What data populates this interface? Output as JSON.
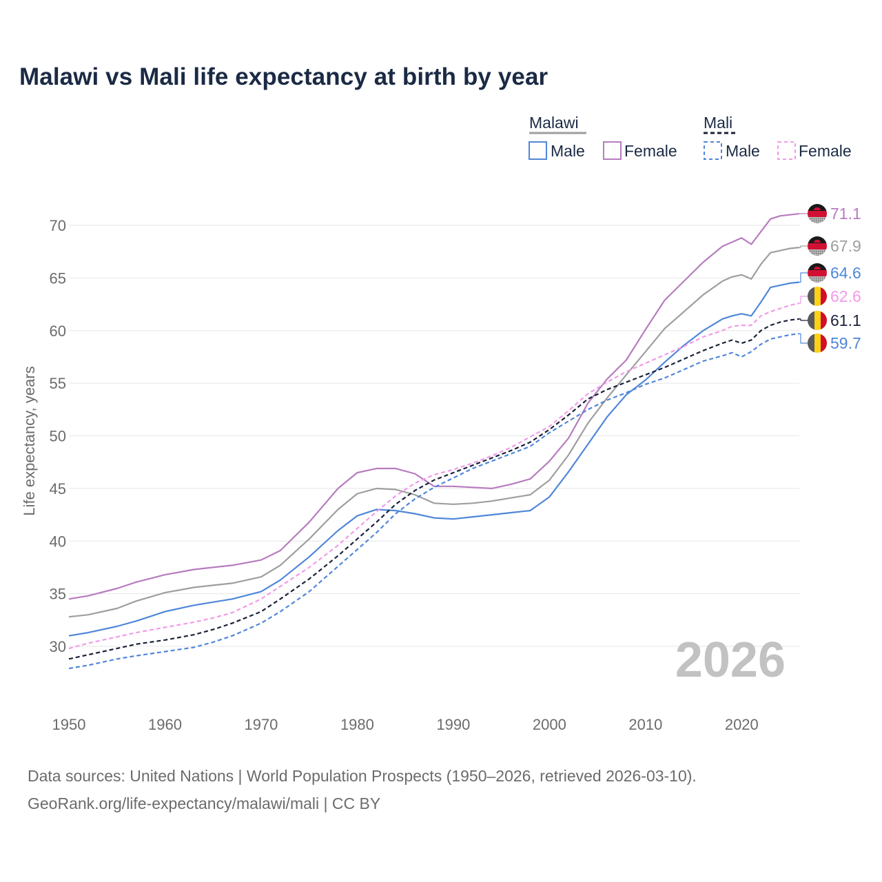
{
  "title": "Malawi vs Mali life expectancy at birth by year",
  "sources": {
    "line1": "Data sources: United Nations | World Population Prospects (1950–2026, retrieved 2026-03-10).",
    "line2": "GeoRank.org/life-expectancy/malawi/mali | CC BY"
  },
  "year_badge": "2026",
  "legend": {
    "groups": [
      {
        "name": "Malawi",
        "items": [
          {
            "label": "Male",
            "series": "Malawi Male"
          },
          {
            "label": "Female",
            "series": "Malawi Female"
          }
        ]
      },
      {
        "name": "Mali",
        "items": [
          {
            "label": "Male",
            "series": "Mali Male"
          },
          {
            "label": "Female",
            "series": "Mali Female"
          }
        ]
      }
    ]
  },
  "colors": {
    "malawi_total": "#9e9e9e",
    "malawi_male": "#4f86d9",
    "malawi_female": "#b77bbf",
    "mali_total": "#1b2238",
    "mali_male": "#4f86d9",
    "mali_female": "#f19ae8",
    "grid": "#e6e6e6",
    "axis_text": "#6b6b6b",
    "title": "#1b2a44"
  },
  "chart_data": {
    "type": "line",
    "title": "Malawi vs Mali life expectancy at birth by year",
    "xlabel": "",
    "ylabel": "Life expectancy, years",
    "xlim": [
      1950,
      2026
    ],
    "ylim": [
      25,
      72.5
    ],
    "x_ticks": [
      1950,
      1960,
      1970,
      1980,
      1990,
      2000,
      2010,
      2020
    ],
    "y_ticks": [
      30,
      35,
      40,
      45,
      50,
      55,
      60,
      65,
      70
    ],
    "grid": true,
    "legend_position": "top-right",
    "x": [
      1950,
      1952,
      1955,
      1957,
      1960,
      1963,
      1965,
      1967,
      1970,
      1972,
      1975,
      1978,
      1980,
      1982,
      1984,
      1986,
      1988,
      1990,
      1992,
      1994,
      1996,
      1998,
      2000,
      2002,
      2004,
      2006,
      2008,
      2010,
      2012,
      2014,
      2016,
      2018,
      2019,
      2020,
      2021,
      2022,
      2023,
      2024,
      2025,
      2026
    ],
    "series": [
      {
        "name": "Malawi Female",
        "country": "Malawi",
        "style": "solid",
        "color": "#b77bbf",
        "end_label": "71.1",
        "values": [
          34.5,
          34.8,
          35.5,
          36.1,
          36.8,
          37.3,
          37.5,
          37.7,
          38.2,
          39.1,
          41.8,
          45.0,
          46.5,
          46.9,
          46.9,
          46.4,
          45.2,
          45.2,
          45.1,
          45.0,
          45.4,
          45.9,
          47.6,
          49.8,
          53.1,
          55.4,
          57.2,
          60.1,
          62.9,
          64.7,
          66.5,
          68.0,
          68.4,
          68.8,
          68.2,
          69.4,
          70.6,
          70.9,
          71.0,
          71.1
        ]
      },
      {
        "name": "Malawi Total",
        "country": "Malawi",
        "style": "solid",
        "color": "#9e9e9e",
        "end_label": "67.9",
        "values": [
          32.8,
          33.0,
          33.6,
          34.3,
          35.1,
          35.6,
          35.8,
          36.0,
          36.6,
          37.7,
          40.2,
          43.0,
          44.5,
          45.0,
          44.9,
          44.4,
          43.6,
          43.5,
          43.6,
          43.8,
          44.1,
          44.4,
          45.8,
          48.2,
          51.2,
          53.6,
          55.8,
          58.0,
          60.2,
          61.8,
          63.4,
          64.7,
          65.1,
          65.3,
          64.9,
          66.3,
          67.4,
          67.6,
          67.8,
          67.9
        ]
      },
      {
        "name": "Malawi Male",
        "country": "Malawi",
        "style": "solid",
        "color": "#4f86d9",
        "end_label": "64.6",
        "values": [
          31.0,
          31.3,
          31.9,
          32.4,
          33.3,
          33.9,
          34.2,
          34.5,
          35.2,
          36.3,
          38.5,
          41.0,
          42.4,
          43.0,
          42.9,
          42.6,
          42.2,
          42.1,
          42.3,
          42.5,
          42.7,
          42.9,
          44.2,
          46.6,
          49.2,
          51.8,
          53.9,
          55.3,
          57.0,
          58.6,
          60.0,
          61.1,
          61.4,
          61.6,
          61.4,
          62.7,
          64.1,
          64.3,
          64.5,
          64.6
        ]
      },
      {
        "name": "Mali Female",
        "country": "Mali",
        "style": "dashed",
        "color": "#f19ae8",
        "end_label": "62.6",
        "values": [
          29.8,
          30.3,
          30.9,
          31.3,
          31.8,
          32.3,
          32.7,
          33.2,
          34.5,
          35.7,
          37.5,
          39.6,
          41.2,
          42.8,
          44.3,
          45.5,
          46.3,
          46.8,
          47.4,
          48.1,
          48.9,
          49.9,
          50.9,
          52.4,
          54.0,
          55.1,
          56.1,
          56.9,
          57.7,
          58.5,
          59.4,
          60.0,
          60.4,
          60.5,
          60.5,
          61.4,
          61.8,
          62.1,
          62.4,
          62.6
        ]
      },
      {
        "name": "Mali Total",
        "country": "Mali",
        "style": "dashed",
        "color": "#1b2238",
        "end_label": "61.1",
        "values": [
          28.8,
          29.2,
          29.8,
          30.2,
          30.6,
          31.1,
          31.6,
          32.2,
          33.3,
          34.5,
          36.4,
          38.6,
          40.2,
          41.8,
          43.5,
          44.8,
          45.8,
          46.5,
          47.2,
          47.9,
          48.6,
          49.4,
          50.6,
          52.0,
          53.5,
          54.4,
          55.1,
          55.8,
          56.5,
          57.3,
          58.1,
          58.8,
          59.1,
          58.8,
          59.1,
          60.0,
          60.5,
          60.8,
          61.0,
          61.1
        ]
      },
      {
        "name": "Mali Male",
        "country": "Mali",
        "style": "dashed",
        "color": "#4f86d9",
        "end_label": "59.7",
        "values": [
          27.9,
          28.2,
          28.8,
          29.1,
          29.5,
          29.9,
          30.4,
          31.0,
          32.2,
          33.3,
          35.2,
          37.6,
          39.2,
          40.8,
          42.6,
          44.0,
          45.1,
          46.0,
          46.9,
          47.6,
          48.3,
          49.0,
          50.3,
          51.4,
          52.5,
          53.4,
          54.1,
          54.9,
          55.5,
          56.3,
          57.1,
          57.6,
          57.9,
          57.5,
          58.0,
          58.7,
          59.2,
          59.4,
          59.6,
          59.7
        ]
      }
    ]
  }
}
